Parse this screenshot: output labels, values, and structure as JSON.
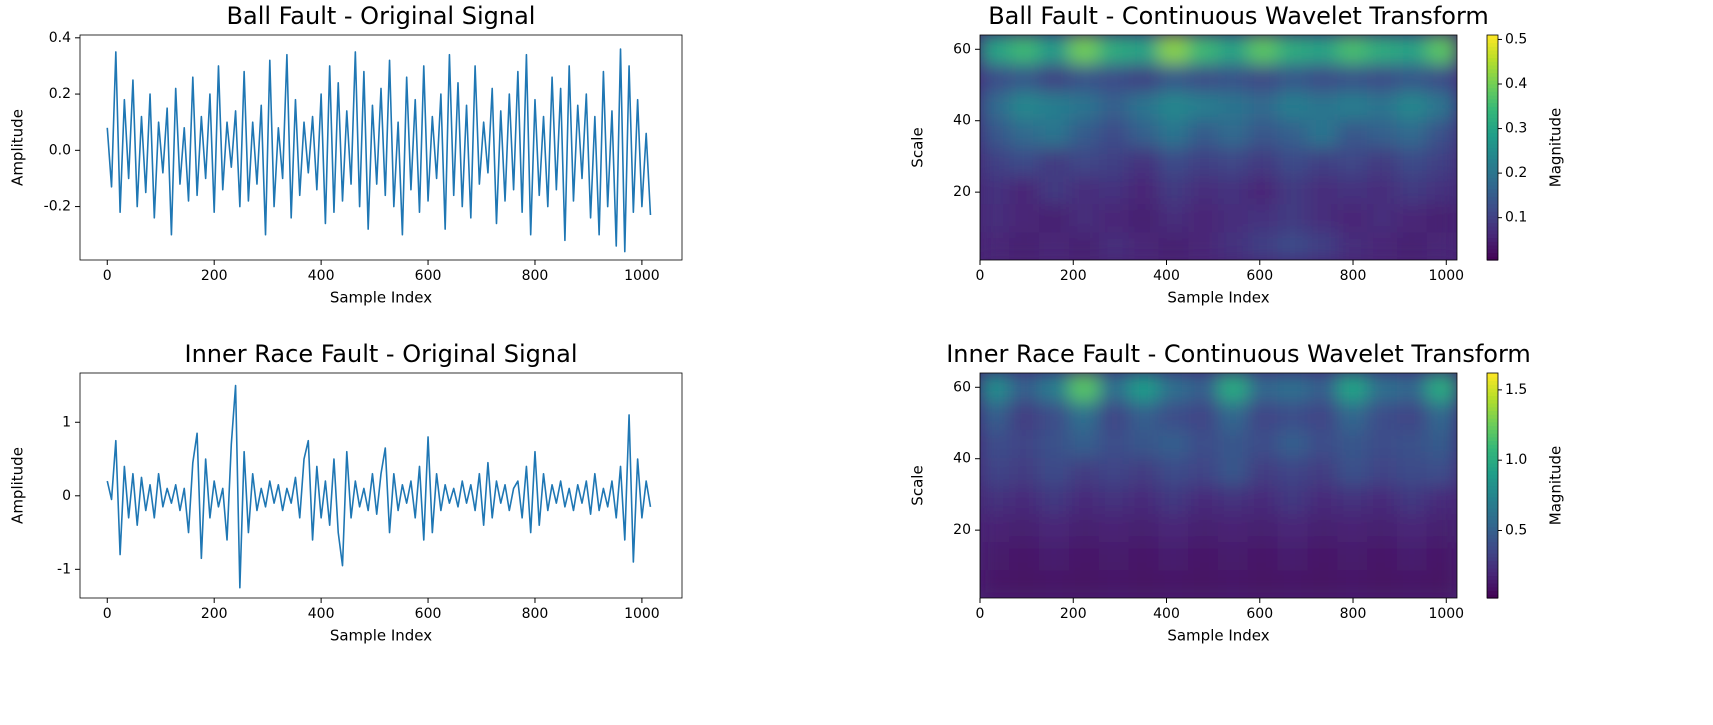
{
  "chart_data": [
    {
      "type": "line",
      "title": "Ball Fault - Original Signal",
      "xlabel": "Sample Index",
      "ylabel": "Amplitude",
      "color": "#1f77b4",
      "x": [
        0,
        8,
        16,
        24,
        32,
        40,
        48,
        56,
        64,
        72,
        80,
        88,
        96,
        104,
        112,
        120,
        128,
        136,
        144,
        152,
        160,
        168,
        176,
        184,
        192,
        200,
        208,
        216,
        224,
        232,
        240,
        248,
        256,
        264,
        272,
        280,
        288,
        296,
        304,
        312,
        320,
        328,
        336,
        344,
        352,
        360,
        368,
        376,
        384,
        392,
        400,
        408,
        416,
        424,
        432,
        440,
        448,
        456,
        464,
        472,
        480,
        488,
        496,
        504,
        512,
        520,
        528,
        536,
        544,
        552,
        560,
        568,
        576,
        584,
        592,
        600,
        608,
        616,
        624,
        632,
        640,
        648,
        656,
        664,
        672,
        680,
        688,
        696,
        704,
        712,
        720,
        728,
        736,
        744,
        752,
        760,
        768,
        776,
        784,
        792,
        800,
        808,
        816,
        824,
        832,
        840,
        848,
        856,
        864,
        872,
        880,
        888,
        896,
        904,
        912,
        920,
        928,
        936,
        944,
        952,
        960,
        968,
        976,
        984,
        992,
        1000,
        1008,
        1016
      ],
      "values": [
        0.08,
        -0.13,
        0.35,
        -0.22,
        0.18,
        -0.1,
        0.25,
        -0.2,
        0.12,
        -0.15,
        0.2,
        -0.24,
        0.1,
        -0.08,
        0.15,
        -0.3,
        0.22,
        -0.12,
        0.08,
        -0.18,
        0.26,
        -0.16,
        0.12,
        -0.1,
        0.2,
        -0.22,
        0.3,
        -0.14,
        0.1,
        -0.06,
        0.14,
        -0.2,
        0.28,
        -0.18,
        0.1,
        -0.12,
        0.16,
        -0.3,
        0.32,
        -0.2,
        0.08,
        -0.1,
        0.34,
        -0.24,
        0.18,
        -0.16,
        0.1,
        -0.08,
        0.12,
        -0.14,
        0.2,
        -0.26,
        0.3,
        -0.22,
        0.24,
        -0.18,
        0.14,
        -0.12,
        0.35,
        -0.2,
        0.28,
        -0.28,
        0.16,
        -0.12,
        0.22,
        -0.16,
        0.32,
        -0.2,
        0.1,
        -0.3,
        0.26,
        -0.14,
        0.18,
        -0.22,
        0.3,
        -0.18,
        0.12,
        -0.1,
        0.2,
        -0.28,
        0.34,
        -0.16,
        0.24,
        -0.2,
        0.16,
        -0.24,
        0.3,
        -0.12,
        0.1,
        -0.08,
        0.22,
        -0.26,
        0.14,
        -0.18,
        0.2,
        -0.14,
        0.28,
        -0.22,
        0.34,
        -0.3,
        0.18,
        -0.16,
        0.12,
        -0.2,
        0.26,
        -0.14,
        0.22,
        -0.32,
        0.3,
        -0.18,
        0.16,
        -0.1,
        0.2,
        -0.24,
        0.12,
        -0.3,
        0.28,
        -0.2,
        0.14,
        -0.34,
        0.36,
        -0.36,
        0.3,
        -0.22,
        0.18,
        -0.2,
        0.06,
        -0.23
      ],
      "xlim": [
        -51,
        1075
      ],
      "ylim": [
        -0.39,
        0.41
      ],
      "xticks": [
        0,
        200,
        400,
        600,
        800,
        1000
      ],
      "yticks": [
        -0.2,
        {
          "value": 0,
          "label": "0.0"
        },
        0.2,
        0.4
      ]
    },
    {
      "type": "heatmap",
      "title": "Ball Fault - Continuous Wavelet Transform",
      "xlabel": "Sample Index",
      "ylabel": "Scale",
      "colorbar_label": "Magnitude",
      "colormap": "viridis",
      "z": [
        [
          0.06,
          0.05,
          0.06,
          0.05,
          0.07,
          0.06,
          0.05,
          0.06,
          0.08,
          0.1,
          0.12,
          0.1,
          0.07,
          0.06,
          0.05,
          0.06
        ],
        [
          0.07,
          0.06,
          0.05,
          0.07,
          0.06,
          0.05,
          0.07,
          0.06,
          0.07,
          0.08,
          0.09,
          0.07,
          0.06,
          0.07,
          0.06,
          0.05
        ],
        [
          0.08,
          0.06,
          0.09,
          0.07,
          0.08,
          0.06,
          0.09,
          0.07,
          0.08,
          0.06,
          0.09,
          0.07,
          0.08,
          0.07,
          0.09,
          0.08
        ],
        [
          0.1,
          0.12,
          0.09,
          0.11,
          0.1,
          0.08,
          0.12,
          0.1,
          0.11,
          0.09,
          0.12,
          0.1,
          0.11,
          0.09,
          0.12,
          0.1
        ],
        [
          0.14,
          0.18,
          0.2,
          0.15,
          0.12,
          0.16,
          0.2,
          0.15,
          0.18,
          0.14,
          0.16,
          0.2,
          0.14,
          0.16,
          0.18,
          0.13
        ],
        [
          0.18,
          0.24,
          0.22,
          0.2,
          0.16,
          0.2,
          0.24,
          0.22,
          0.2,
          0.18,
          0.22,
          0.2,
          0.22,
          0.2,
          0.24,
          0.2
        ],
        [
          0.12,
          0.14,
          0.1,
          0.13,
          0.12,
          0.1,
          0.14,
          0.12,
          0.13,
          0.11,
          0.14,
          0.12,
          0.13,
          0.12,
          0.14,
          0.12
        ],
        [
          0.3,
          0.35,
          0.28,
          0.4,
          0.32,
          0.3,
          0.42,
          0.35,
          0.3,
          0.38,
          0.32,
          0.3,
          0.36,
          0.32,
          0.3,
          0.38
        ]
      ],
      "xlim": [
        0,
        1023
      ],
      "ylim": [
        1,
        64
      ],
      "xticks": [
        0,
        200,
        400,
        600,
        800,
        1000
      ],
      "yticks": [
        20,
        40,
        60
      ],
      "zlim": [
        0.005,
        0.51
      ],
      "zticks": [
        0.1,
        0.2,
        0.3,
        0.4,
        0.5
      ]
    },
    {
      "type": "line",
      "title": "Inner Race Fault - Original Signal",
      "xlabel": "Sample Index",
      "ylabel": "Amplitude",
      "color": "#1f77b4",
      "x": [
        0,
        8,
        16,
        24,
        32,
        40,
        48,
        56,
        64,
        72,
        80,
        88,
        96,
        104,
        112,
        120,
        128,
        136,
        144,
        152,
        160,
        168,
        176,
        184,
        192,
        200,
        208,
        216,
        224,
        232,
        240,
        248,
        256,
        264,
        272,
        280,
        288,
        296,
        304,
        312,
        320,
        328,
        336,
        344,
        352,
        360,
        368,
        376,
        384,
        392,
        400,
        408,
        416,
        424,
        432,
        440,
        448,
        456,
        464,
        472,
        480,
        488,
        496,
        504,
        512,
        520,
        528,
        536,
        544,
        552,
        560,
        568,
        576,
        584,
        592,
        600,
        608,
        616,
        624,
        632,
        640,
        648,
        656,
        664,
        672,
        680,
        688,
        696,
        704,
        712,
        720,
        728,
        736,
        744,
        752,
        760,
        768,
        776,
        784,
        792,
        800,
        808,
        816,
        824,
        832,
        840,
        848,
        856,
        864,
        872,
        880,
        888,
        896,
        904,
        912,
        920,
        928,
        936,
        944,
        952,
        960,
        968,
        976,
        984,
        992,
        1000,
        1008,
        1016
      ],
      "values": [
        0.2,
        -0.05,
        0.75,
        -0.8,
        0.4,
        -0.3,
        0.3,
        -0.4,
        0.25,
        -0.2,
        0.15,
        -0.3,
        0.3,
        -0.15,
        0.1,
        -0.1,
        0.15,
        -0.2,
        0.1,
        -0.5,
        0.45,
        0.85,
        -0.85,
        0.5,
        -0.3,
        0.2,
        -0.15,
        0.1,
        -0.6,
        0.7,
        1.5,
        -1.25,
        0.6,
        -0.5,
        0.3,
        -0.2,
        0.1,
        -0.15,
        0.2,
        -0.1,
        0.15,
        -0.2,
        0.1,
        -0.1,
        0.25,
        -0.3,
        0.5,
        0.75,
        -0.6,
        0.4,
        -0.3,
        0.2,
        -0.4,
        0.5,
        -0.5,
        -0.95,
        0.6,
        -0.3,
        0.2,
        -0.15,
        0.1,
        -0.2,
        0.3,
        -0.25,
        0.3,
        0.65,
        -0.5,
        0.3,
        -0.2,
        0.15,
        -0.1,
        0.2,
        -0.3,
        0.4,
        -0.6,
        0.8,
        -0.5,
        0.3,
        -0.2,
        0.15,
        -0.1,
        0.1,
        -0.15,
        0.2,
        -0.1,
        0.15,
        -0.2,
        0.3,
        -0.4,
        0.45,
        -0.3,
        0.2,
        -0.1,
        0.15,
        -0.2,
        0.1,
        0.2,
        -0.3,
        0.4,
        -0.5,
        0.6,
        -0.4,
        0.3,
        -0.2,
        0.15,
        -0.1,
        0.2,
        -0.15,
        0.1,
        -0.2,
        0.15,
        -0.1,
        0.2,
        -0.25,
        0.3,
        -0.2,
        0.1,
        -0.15,
        0.2,
        -0.3,
        0.4,
        -0.6,
        1.1,
        -0.9,
        0.5,
        -0.3,
        0.2,
        -0.15
      ],
      "xlim": [
        -51,
        1075
      ],
      "ylim": [
        -1.39,
        1.67
      ],
      "xticks": [
        0,
        200,
        400,
        600,
        800,
        1000
      ],
      "yticks": [
        -1,
        0,
        1
      ]
    },
    {
      "type": "heatmap",
      "title": "Inner Race Fault - Continuous Wavelet Transform",
      "xlabel": "Sample Index",
      "ylabel": "Scale",
      "colorbar_label": "Magnitude",
      "colormap": "viridis",
      "z": [
        [
          0.12,
          0.1,
          0.11,
          0.1,
          0.12,
          0.1,
          0.11,
          0.1,
          0.12,
          0.1,
          0.11,
          0.1,
          0.12,
          0.1,
          0.11,
          0.1
        ],
        [
          0.14,
          0.12,
          0.15,
          0.12,
          0.14,
          0.12,
          0.15,
          0.12,
          0.14,
          0.12,
          0.15,
          0.12,
          0.14,
          0.12,
          0.15,
          0.12
        ],
        [
          0.18,
          0.16,
          0.2,
          0.16,
          0.18,
          0.16,
          0.2,
          0.16,
          0.18,
          0.16,
          0.2,
          0.16,
          0.18,
          0.16,
          0.2,
          0.16
        ],
        [
          0.25,
          0.22,
          0.28,
          0.22,
          0.25,
          0.22,
          0.28,
          0.22,
          0.25,
          0.22,
          0.28,
          0.22,
          0.25,
          0.22,
          0.28,
          0.22
        ],
        [
          0.35,
          0.3,
          0.38,
          0.3,
          0.35,
          0.3,
          0.38,
          0.35,
          0.45,
          0.3,
          0.35,
          0.3,
          0.42,
          0.35,
          0.38,
          0.4
        ],
        [
          0.4,
          0.35,
          0.42,
          0.5,
          0.4,
          0.45,
          0.5,
          0.4,
          0.45,
          0.4,
          0.5,
          0.4,
          0.45,
          0.4,
          0.42,
          0.48
        ],
        [
          0.5,
          0.3,
          0.4,
          0.6,
          0.35,
          0.5,
          0.4,
          0.35,
          0.55,
          0.35,
          0.4,
          0.35,
          0.55,
          0.4,
          0.35,
          0.55
        ],
        [
          0.8,
          0.5,
          0.7,
          1.2,
          0.6,
          0.9,
          0.6,
          0.5,
          1.0,
          0.55,
          0.6,
          0.5,
          0.95,
          0.6,
          0.55,
          1.0
        ]
      ],
      "xlim": [
        0,
        1023
      ],
      "ylim": [
        1,
        64
      ],
      "xticks": [
        0,
        200,
        400,
        600,
        800,
        1000
      ],
      "yticks": [
        20,
        40,
        60
      ],
      "zlim": [
        0.02,
        1.62
      ],
      "zticks": [
        0.5,
        {
          "value": 1,
          "label": "1.0"
        },
        1.5
      ]
    }
  ]
}
